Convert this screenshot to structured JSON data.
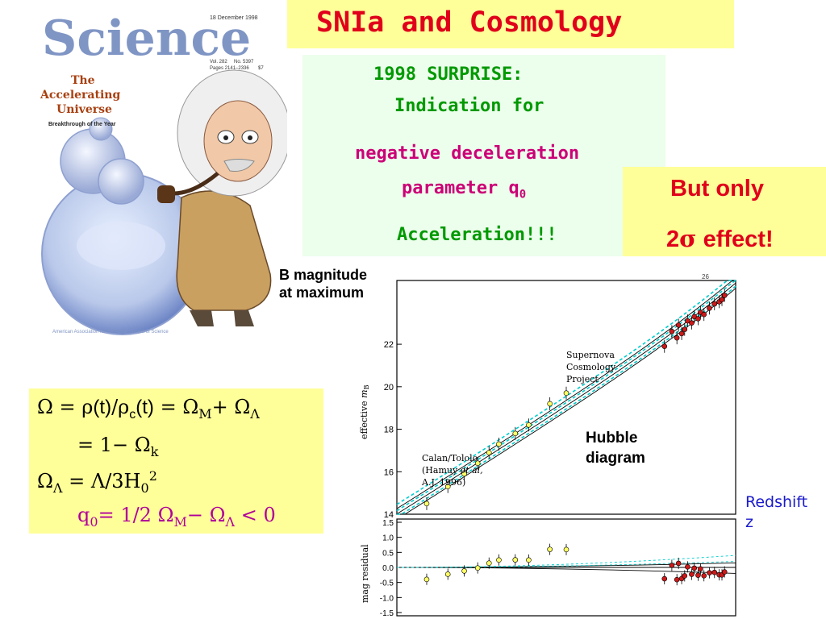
{
  "title": "SNIa and Cosmology",
  "cover": {
    "date": "18 December 1998",
    "magazine": "Science",
    "vol": "Vol. 282",
    "no": "No. 5397",
    "pages": "Pages 2141–2336",
    "price": "$7",
    "headline_line1": "The",
    "headline_line2": "Accelerating",
    "headline_line3": "Universe",
    "subline": "Breakthrough of the Year",
    "footer": "American Association for the Advancement of Science"
  },
  "surprise": {
    "line1": "1998 SURPRISE:",
    "line2": "Indication for",
    "line3": "negative deceleration",
    "line4": "parameter q",
    "line4_sub": "0",
    "line5": "Acceleration!!!"
  },
  "but_only": {
    "line1": "But only",
    "sigma_prefix": "2",
    "sigma": "σ",
    "effect": " effect!"
  },
  "formula": {
    "omega": "Ω",
    "rho": "ρ",
    "c": "c",
    "M": "M",
    "L": "Λ",
    "k": "k",
    "q0_q": "q",
    "zero": "0",
    "two": "2",
    "t_paren": "(t)",
    "slash": "/",
    "eq": "=",
    "plus": "+",
    "one_minus": "1−",
    "three_H": "/3H",
    "half": "1/2",
    "minus": "−",
    "lt": "< 0"
  },
  "labels": {
    "bmag_line1": "B magnitude",
    "bmag_line2": "at maximum",
    "hubble_line1": "Hubble",
    "hubble_line2": "diagram",
    "redshift_line1": "Redshift",
    "redshift_line2": "z",
    "effective_mb": "effective",
    "mb_m": "m",
    "mb_B": "B",
    "mag_residual": "mag residual",
    "scp_line1": "Supernova",
    "scp_line2": "Cosmology",
    "scp_line3": "Project",
    "ct_line1": "Calan/Tololo",
    "ct_line2_pre": "(Hamuy ",
    "ct_line2_it": "et al,",
    "ct_line3": "A.J. 1996)",
    "top_right_tick": "26"
  },
  "colors": {
    "title_red": "#e0001b",
    "green": "#009900",
    "magenta": "#cc0077",
    "yellow_box": "#ffff99",
    "green_box": "#ecfeec",
    "cyan_curve": "#00cccc",
    "blue_label": "#1a1acc"
  },
  "chart_data": [
    {
      "type": "scatter",
      "ylabel": "effective m_B",
      "y_ticks": [
        "14",
        "16",
        "18",
        "20",
        "22"
      ],
      "ylim": [
        14,
        25
      ],
      "series": [
        {
          "name": "Supernova Cosmology Project",
          "points": [
            [
              0.38,
              21.9
            ],
            [
              0.42,
              22.6
            ],
            [
              0.45,
              22.3
            ],
            [
              0.46,
              22.9
            ],
            [
              0.48,
              22.5
            ],
            [
              0.5,
              22.7
            ],
            [
              0.52,
              23.1
            ],
            [
              0.55,
              23.0
            ],
            [
              0.57,
              23.3
            ],
            [
              0.6,
              23.2
            ],
            [
              0.62,
              23.5
            ],
            [
              0.65,
              23.4
            ],
            [
              0.7,
              23.7
            ],
            [
              0.75,
              23.9
            ],
            [
              0.8,
              24.0
            ],
            [
              0.83,
              24.1
            ],
            [
              0.86,
              24.3
            ]
          ]
        },
        {
          "name": "Calan/Tololo",
          "points": [
            [
              0.015,
              14.5
            ],
            [
              0.02,
              15.3
            ],
            [
              0.025,
              15.9
            ],
            [
              0.03,
              16.4
            ],
            [
              0.035,
              16.9
            ],
            [
              0.04,
              17.3
            ],
            [
              0.05,
              17.8
            ],
            [
              0.06,
              18.2
            ],
            [
              0.08,
              19.2
            ],
            [
              0.1,
              19.7
            ]
          ]
        }
      ],
      "grid": false
    },
    {
      "type": "scatter",
      "ylabel": "mag residual",
      "y_ticks": [
        "1.5",
        "1.0",
        "0.5",
        "0.0",
        "-0.5",
        "-1.0",
        "-1.5"
      ],
      "ylim": [
        -1.5,
        1.5
      ],
      "grid": false
    }
  ]
}
